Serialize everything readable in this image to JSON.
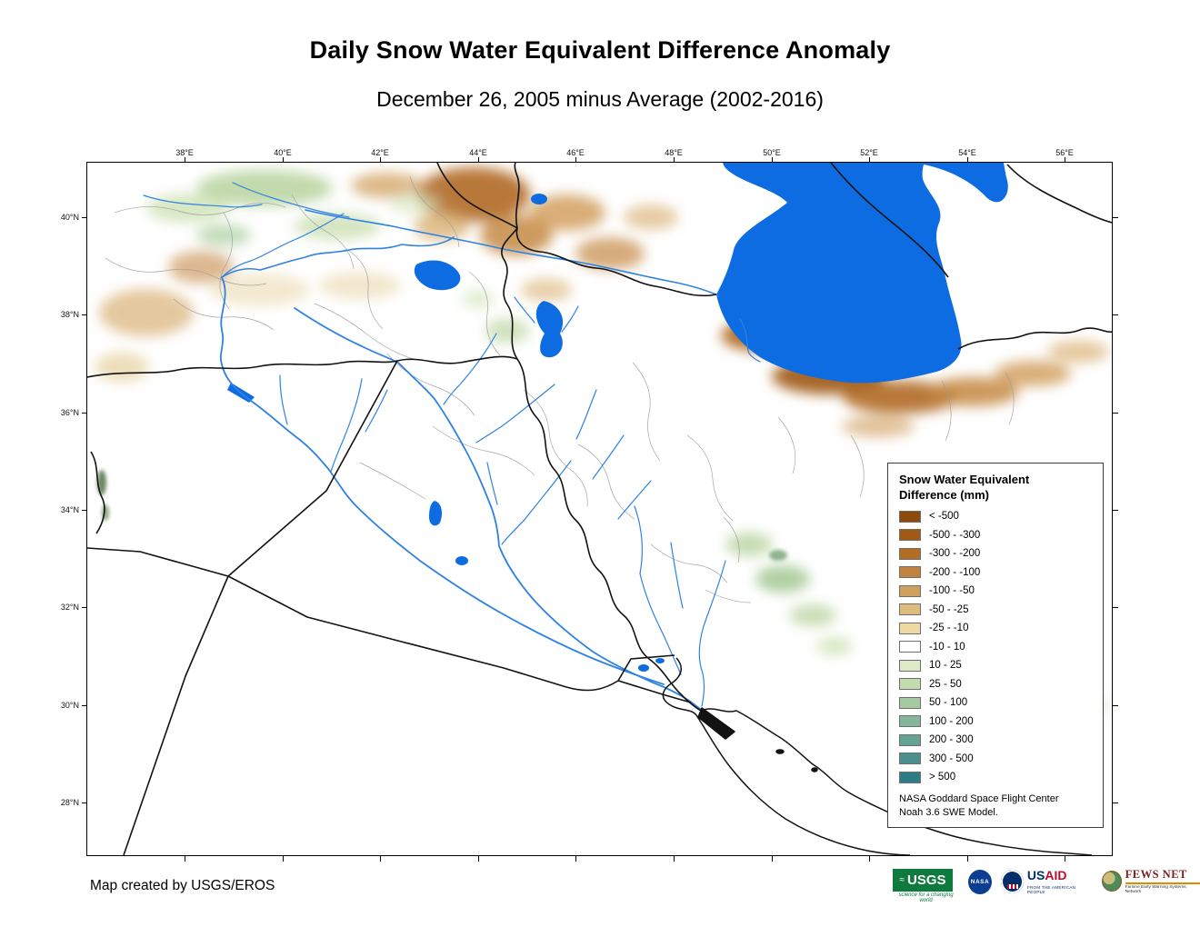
{
  "title": "Daily Snow Water Equivalent Difference Anomaly",
  "subtitle": "December 26, 2005 minus Average (2002-2016)",
  "axes": {
    "top": [
      "38°E",
      "40°E",
      "42°E",
      "44°E",
      "46°E",
      "48°E",
      "50°E",
      "52°E",
      "54°E",
      "56°E"
    ],
    "left": [
      "40°N",
      "38°N",
      "36°N",
      "34°N",
      "32°N",
      "30°N",
      "28°N"
    ]
  },
  "legend": {
    "title_line1": "Snow Water Equivalent",
    "title_line2": "Difference (mm)",
    "items": [
      {
        "label": "< -500",
        "color": "#8c4a0b"
      },
      {
        "label": "-500 - -300",
        "color": "#a05a14"
      },
      {
        "label": "-300 - -200",
        "color": "#b26e22"
      },
      {
        "label": "-200 - -100",
        "color": "#c08440"
      },
      {
        "label": "-100 - -50",
        "color": "#cfa05e"
      },
      {
        "label": "-50 - -25",
        "color": "#debc7e"
      },
      {
        "label": "-25 - -10",
        "color": "#eed9a4"
      },
      {
        "label": "-10 - 10",
        "color": "#ffffff"
      },
      {
        "label": "10 - 25",
        "color": "#ddebc8"
      },
      {
        "label": "25 - 50",
        "color": "#c3dcae"
      },
      {
        "label": "50 - 100",
        "color": "#a5c9a1"
      },
      {
        "label": "100 - 200",
        "color": "#86b69a"
      },
      {
        "label": "200 - 300",
        "color": "#67a394"
      },
      {
        "label": "300 - 500",
        "color": "#4b908d"
      },
      {
        "label": "> 500",
        "color": "#2e7d86"
      }
    ],
    "note_line1": "NASA Goddard Space Flight Center",
    "note_line2": "Noah 3.6 SWE Model."
  },
  "map": {
    "colors": {
      "water": "#0d6ce1",
      "river": "#2f82e2",
      "country_border": "#121212",
      "admin_border": "#9b9b9b"
    }
  },
  "footer": {
    "credit": "Map created by USGS/EROS",
    "logos": {
      "usgs": {
        "text": "USGS",
        "tagline": "science for a changing world"
      },
      "nasa": {
        "text": "NASA"
      },
      "usaid": {
        "text_us": "US",
        "text_aid": "AID",
        "tagline": "FROM THE AMERICAN PEOPLE"
      },
      "fewsnet": {
        "text": "FEWS NET",
        "tagline": "Famine Early Warning Systems Network"
      }
    }
  }
}
